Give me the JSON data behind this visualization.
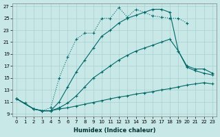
{
  "xlabel": "Humidex (Indice chaleur)",
  "xlim": [
    -0.5,
    23.5
  ],
  "ylim": [
    8.5,
    27.5
  ],
  "xticks": [
    0,
    1,
    2,
    3,
    4,
    5,
    6,
    7,
    8,
    9,
    10,
    11,
    12,
    13,
    14,
    15,
    16,
    17,
    18,
    19,
    20,
    21,
    22,
    23
  ],
  "yticks": [
    9,
    11,
    13,
    15,
    17,
    19,
    21,
    23,
    25,
    27
  ],
  "bg_color": "#c8e8e8",
  "grid_color": "#a8d0d0",
  "line_color": "#006666",
  "curve1_x": [
    0,
    1,
    2,
    3,
    4,
    5,
    6,
    7,
    8,
    9,
    10,
    11,
    12,
    13,
    14,
    15,
    16,
    17,
    18,
    19,
    20
  ],
  "curve1_y": [
    11.5,
    10.8,
    9.8,
    9.5,
    10.0,
    15.0,
    18.5,
    21.5,
    22.5,
    22.5,
    25.0,
    25.0,
    26.8,
    25.2,
    26.5,
    26.0,
    25.4,
    25.2,
    25.0,
    25.0,
    24.2
  ],
  "curve2_x": [
    0,
    2,
    3,
    4,
    5,
    6,
    7,
    8,
    9,
    10,
    11,
    12,
    13,
    14,
    15,
    16,
    17,
    18,
    19,
    20,
    21,
    22,
    23
  ],
  "curve2_y": [
    11.5,
    9.8,
    9.5,
    9.5,
    11.0,
    13.5,
    16.0,
    18.0,
    20.0,
    22.0,
    23.0,
    24.2,
    25.0,
    25.5,
    26.0,
    26.5,
    26.5,
    26.0,
    19.5,
    16.8,
    16.2,
    15.8,
    15.5
  ],
  "curve3_x": [
    0,
    2,
    3,
    4,
    5,
    6,
    7,
    8,
    9,
    10,
    11,
    12,
    13,
    14,
    15,
    16,
    17,
    18,
    19,
    20,
    21,
    22,
    23
  ],
  "curve3_y": [
    11.5,
    9.8,
    9.5,
    9.5,
    10.0,
    10.8,
    12.0,
    13.5,
    15.0,
    16.0,
    17.0,
    18.0,
    18.8,
    19.5,
    20.0,
    20.5,
    21.0,
    21.5,
    19.5,
    17.0,
    16.5,
    16.5,
    15.8
  ],
  "curve4_x": [
    0,
    2,
    3,
    4,
    5,
    6,
    7,
    8,
    9,
    10,
    11,
    12,
    13,
    14,
    15,
    16,
    17,
    18,
    19,
    20,
    21,
    22,
    23
  ],
  "curve4_y": [
    11.5,
    9.8,
    9.5,
    9.5,
    9.8,
    10.0,
    10.3,
    10.6,
    10.9,
    11.2,
    11.5,
    11.8,
    12.0,
    12.3,
    12.5,
    12.7,
    13.0,
    13.2,
    13.5,
    13.8,
    14.0,
    14.2,
    14.0
  ]
}
